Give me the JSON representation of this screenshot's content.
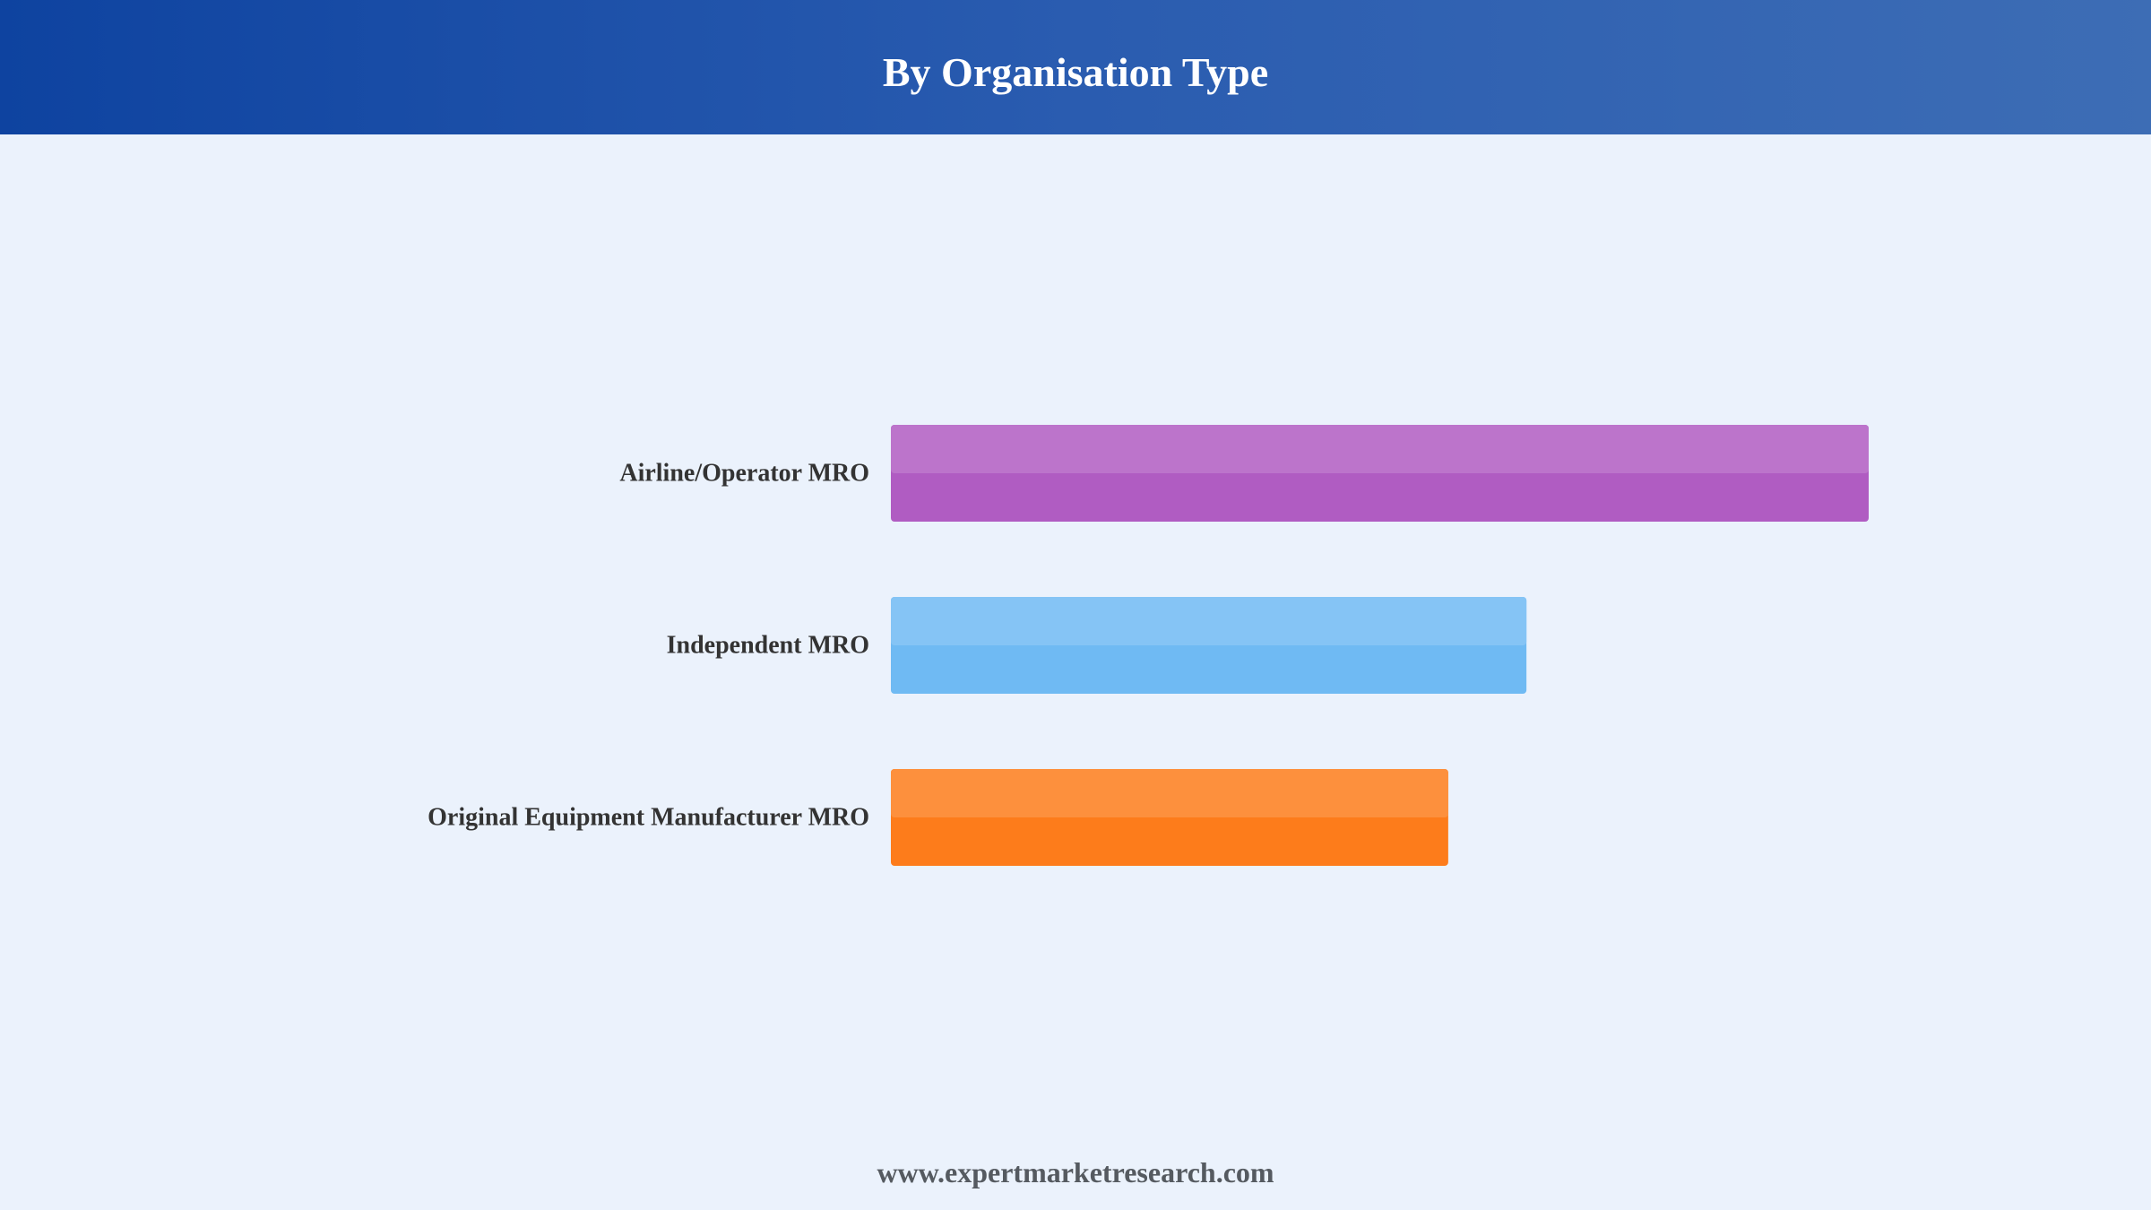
{
  "header": {
    "title": "By Organisation Type"
  },
  "chart_data": {
    "type": "bar",
    "orientation": "horizontal",
    "title": "By Organisation Type",
    "categories": [
      "Airline/Operator MRO",
      "Independent MRO",
      "Original Equipment Manufacturer MRO"
    ],
    "values": [
      100,
      65,
      57
    ],
    "colors": [
      "#b05cc2",
      "#6fbaf3",
      "#fd7c1b"
    ],
    "xlabel": "",
    "ylabel": "",
    "xlim": [
      0,
      100
    ],
    "grid": false,
    "legend": "none"
  },
  "footer": {
    "website": "www.expertmarketresearch.com"
  }
}
